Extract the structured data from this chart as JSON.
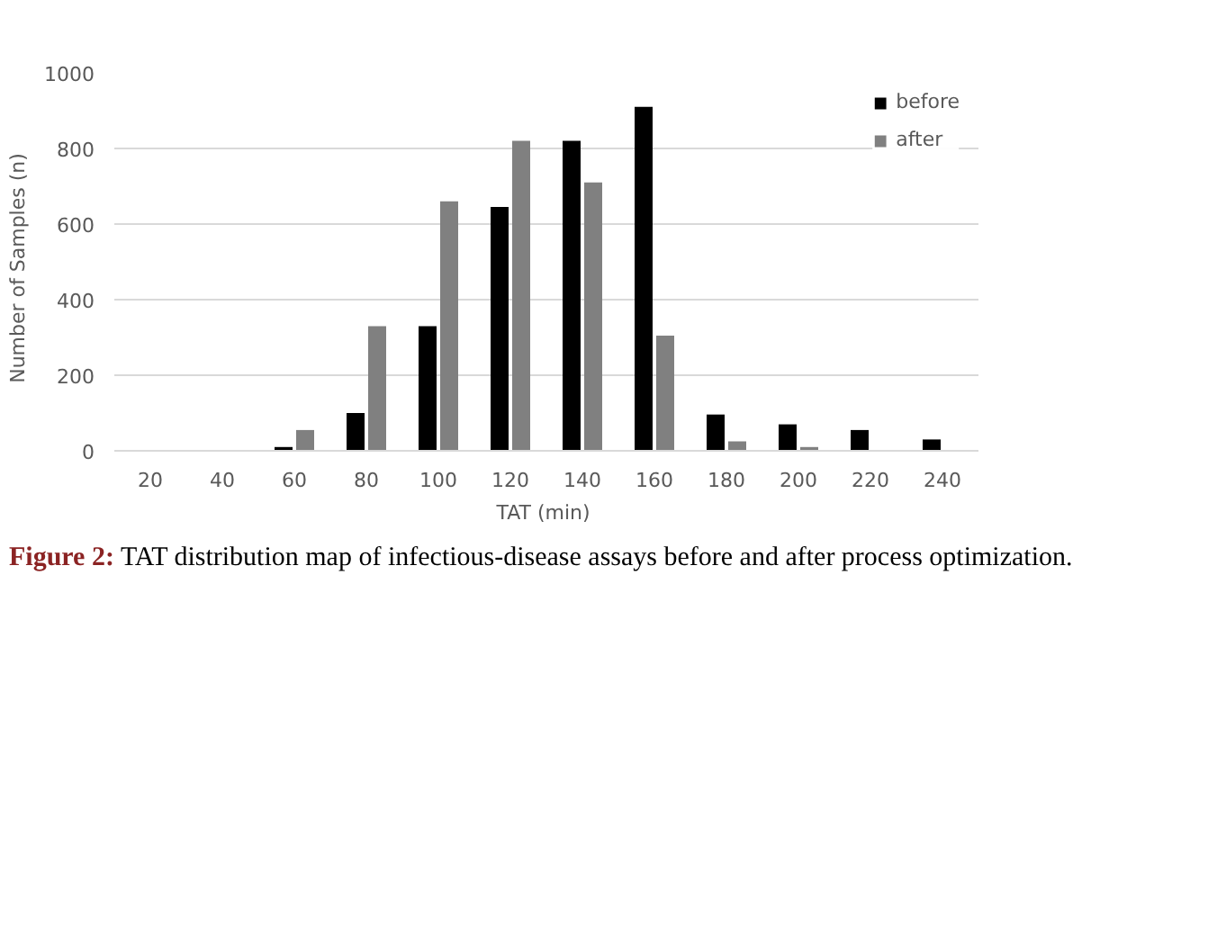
{
  "chart_data": {
    "type": "bar",
    "categories": [
      "20",
      "40",
      "60",
      "80",
      "100",
      "120",
      "140",
      "160",
      "180",
      "200",
      "220",
      "240"
    ],
    "series": [
      {
        "name": "before",
        "color": "#000000",
        "values": [
          0,
          0,
          10,
          100,
          330,
          645,
          820,
          910,
          96,
          70,
          55,
          30
        ]
      },
      {
        "name": "after",
        "color": "#808080",
        "values": [
          0,
          0,
          55,
          330,
          660,
          820,
          710,
          305,
          25,
          10,
          0,
          0
        ]
      }
    ],
    "xlabel": "TAT  (min)",
    "ylabel": "Number  of Samples  (n)",
    "ylim": [
      0,
      1000
    ],
    "yticks": [
      0,
      200,
      400,
      600,
      800,
      1000
    ],
    "grid": "y",
    "legend": "top right",
    "annotations": [
      "Figure 2: TAT distribution map of infectious-disease assays before and after process optimization."
    ]
  }
}
